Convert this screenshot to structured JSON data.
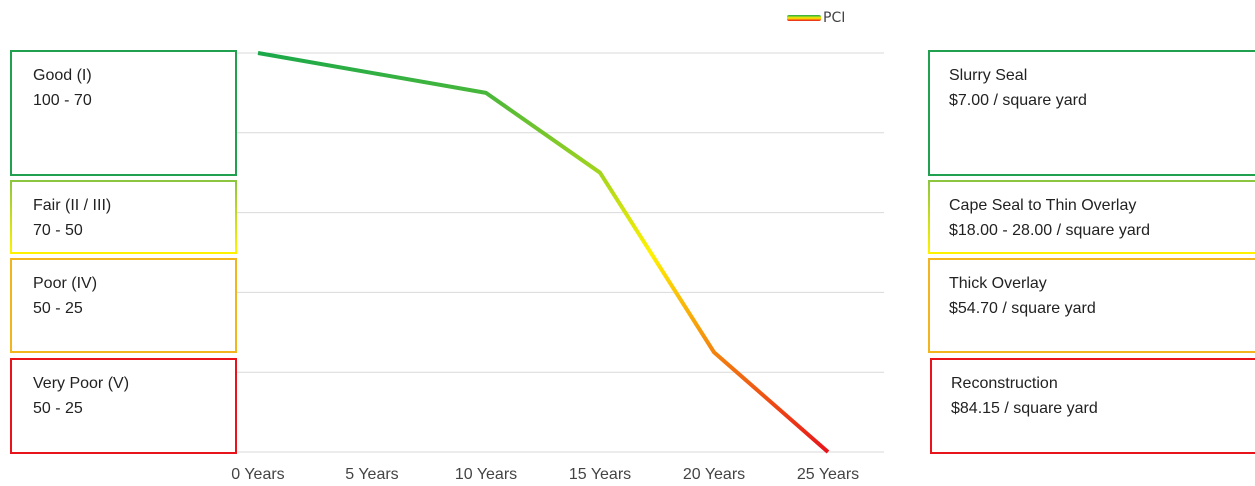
{
  "chart_data": {
    "type": "line",
    "categories": [
      "0 Years",
      "5 Years",
      "10 Years",
      "15 Years",
      "20 Years",
      "25 Years"
    ],
    "series": [
      {
        "name": "PCI",
        "color": [
          "#1aa84a",
          "#fff200",
          "#e8141b"
        ],
        "values": [
          100,
          95,
          90,
          70,
          25,
          0
        ]
      }
    ],
    "ylim": [
      0,
      100
    ],
    "yticks": [
      0,
      20,
      40,
      60,
      80,
      100
    ],
    "grid": true,
    "legend": "top-right",
    "levels": [
      {
        "label": "Good (I)",
        "range": "100 - 70",
        "color": "#21a150"
      },
      {
        "label": "Fair (II / III)",
        "range": "70 - 50",
        "color": [
          "#8cc63f",
          "#fff200"
        ]
      },
      {
        "label": "Poor (IV)",
        "range": "50 - 25",
        "color": "#f2b520"
      },
      {
        "label": "Very Poor (V)",
        "range": "50 - 25",
        "color": "#e8141b"
      }
    ],
    "treatments": [
      {
        "label": "Slurry Seal",
        "cost": "$7.00 / square yard",
        "color": "#21a150"
      },
      {
        "label": "Cape Seal to Thin Overlay",
        "cost": "$18.00 - 28.00 / square yard",
        "color": [
          "#8cc63f",
          "#fff200"
        ]
      },
      {
        "label": "Thick Overlay",
        "cost": "$54.70 / square yard",
        "color": "#f2b520"
      },
      {
        "label": "Reconstruction",
        "cost": "$84.15 / square yard",
        "color": "#e8141b"
      }
    ]
  }
}
